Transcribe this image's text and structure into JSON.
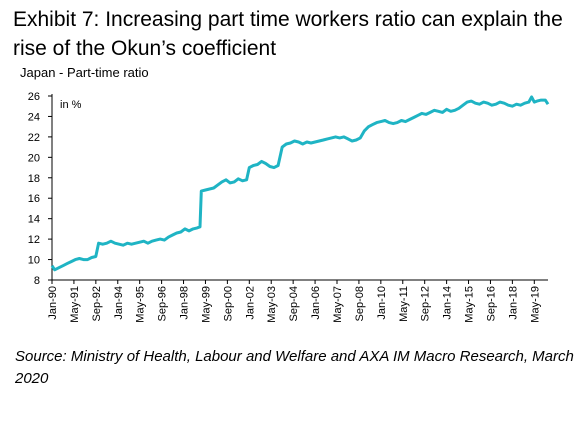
{
  "exhibit_title": "Exhibit 7: Increasing part time workers ratio can explain the rise of the Okun’s coefficient",
  "source": "Source: Ministry of Health, Labour and Welfare and AXA IM Macro Research, March 2020",
  "chart_data": {
    "type": "line",
    "title": "Japan - Part-time ratio",
    "unit_label": "in %",
    "xlabel": "",
    "ylabel": "",
    "ylim": [
      8,
      26
    ],
    "yticks": [
      8,
      10,
      12,
      14,
      16,
      18,
      20,
      22,
      24,
      26
    ],
    "x_range": [
      "1990-01",
      "2020-03"
    ],
    "xticks": [
      "Jan-90",
      "May-91",
      "Sep-92",
      "Jan-94",
      "May-95",
      "Sep-96",
      "Jan-98",
      "May-99",
      "Sep-00",
      "Jan-02",
      "May-03",
      "Sep-04",
      "Jan-06",
      "May-07",
      "Sep-08",
      "Jan-10",
      "May-11",
      "Sep-12",
      "Jan-14",
      "May-15",
      "Sep-16",
      "Jan-18",
      "May-19"
    ],
    "grid": false,
    "legend": "none",
    "line_color": "#1fb4c4",
    "series": [
      {
        "values": [
          [
            "1990-01",
            9.4
          ],
          [
            "1990-03",
            9.0
          ],
          [
            "1990-06",
            9.2
          ],
          [
            "1990-09",
            9.4
          ],
          [
            "1990-12",
            9.6
          ],
          [
            "1991-03",
            9.8
          ],
          [
            "1991-06",
            10.0
          ],
          [
            "1991-09",
            10.1
          ],
          [
            "1991-12",
            10.0
          ],
          [
            "1992-03",
            10.0
          ],
          [
            "1992-06",
            10.2
          ],
          [
            "1992-09",
            10.3
          ],
          [
            "1992-11",
            11.6
          ],
          [
            "1993-02",
            11.5
          ],
          [
            "1993-05",
            11.6
          ],
          [
            "1993-08",
            11.8
          ],
          [
            "1993-11",
            11.6
          ],
          [
            "1994-02",
            11.5
          ],
          [
            "1994-05",
            11.4
          ],
          [
            "1994-08",
            11.6
          ],
          [
            "1994-11",
            11.5
          ],
          [
            "1995-02",
            11.6
          ],
          [
            "1995-05",
            11.7
          ],
          [
            "1995-08",
            11.8
          ],
          [
            "1995-11",
            11.6
          ],
          [
            "1996-02",
            11.8
          ],
          [
            "1996-05",
            11.9
          ],
          [
            "1996-08",
            12.0
          ],
          [
            "1996-11",
            11.9
          ],
          [
            "1997-02",
            12.2
          ],
          [
            "1997-05",
            12.4
          ],
          [
            "1997-08",
            12.6
          ],
          [
            "1997-11",
            12.7
          ],
          [
            "1998-02",
            13.0
          ],
          [
            "1998-05",
            12.8
          ],
          [
            "1998-08",
            13.0
          ],
          [
            "1998-11",
            13.1
          ],
          [
            "1999-01",
            13.2
          ],
          [
            "1999-02",
            16.7
          ],
          [
            "1999-05",
            16.8
          ],
          [
            "1999-08",
            16.9
          ],
          [
            "1999-11",
            17.0
          ],
          [
            "2000-02",
            17.3
          ],
          [
            "2000-05",
            17.6
          ],
          [
            "2000-08",
            17.8
          ],
          [
            "2000-11",
            17.5
          ],
          [
            "2001-02",
            17.6
          ],
          [
            "2001-05",
            17.9
          ],
          [
            "2001-08",
            17.7
          ],
          [
            "2001-11",
            17.8
          ],
          [
            "2002-01",
            19.0
          ],
          [
            "2002-04",
            19.2
          ],
          [
            "2002-07",
            19.3
          ],
          [
            "2002-10",
            19.6
          ],
          [
            "2003-01",
            19.4
          ],
          [
            "2003-04",
            19.1
          ],
          [
            "2003-07",
            19.0
          ],
          [
            "2003-10",
            19.2
          ],
          [
            "2004-01",
            21.0
          ],
          [
            "2004-04",
            21.3
          ],
          [
            "2004-07",
            21.4
          ],
          [
            "2004-10",
            21.6
          ],
          [
            "2005-01",
            21.5
          ],
          [
            "2005-04",
            21.3
          ],
          [
            "2005-07",
            21.5
          ],
          [
            "2005-10",
            21.4
          ],
          [
            "2006-01",
            21.5
          ],
          [
            "2006-04",
            21.6
          ],
          [
            "2006-07",
            21.7
          ],
          [
            "2006-10",
            21.8
          ],
          [
            "2007-01",
            21.9
          ],
          [
            "2007-04",
            22.0
          ],
          [
            "2007-07",
            21.9
          ],
          [
            "2007-10",
            22.0
          ],
          [
            "2008-01",
            21.8
          ],
          [
            "2008-04",
            21.6
          ],
          [
            "2008-07",
            21.7
          ],
          [
            "2008-10",
            21.9
          ],
          [
            "2009-01",
            22.6
          ],
          [
            "2009-04",
            23.0
          ],
          [
            "2009-07",
            23.2
          ],
          [
            "2009-10",
            23.4
          ],
          [
            "2010-01",
            23.5
          ],
          [
            "2010-04",
            23.6
          ],
          [
            "2010-07",
            23.4
          ],
          [
            "2010-10",
            23.3
          ],
          [
            "2011-01",
            23.4
          ],
          [
            "2011-04",
            23.6
          ],
          [
            "2011-07",
            23.5
          ],
          [
            "2011-10",
            23.7
          ],
          [
            "2012-01",
            23.9
          ],
          [
            "2012-04",
            24.1
          ],
          [
            "2012-07",
            24.3
          ],
          [
            "2012-10",
            24.2
          ],
          [
            "2013-01",
            24.4
          ],
          [
            "2013-04",
            24.6
          ],
          [
            "2013-07",
            24.5
          ],
          [
            "2013-10",
            24.4
          ],
          [
            "2014-01",
            24.7
          ],
          [
            "2014-04",
            24.5
          ],
          [
            "2014-07",
            24.6
          ],
          [
            "2014-10",
            24.8
          ],
          [
            "2015-01",
            25.1
          ],
          [
            "2015-04",
            25.4
          ],
          [
            "2015-07",
            25.5
          ],
          [
            "2015-10",
            25.3
          ],
          [
            "2016-01",
            25.2
          ],
          [
            "2016-04",
            25.4
          ],
          [
            "2016-07",
            25.3
          ],
          [
            "2016-10",
            25.1
          ],
          [
            "2017-01",
            25.2
          ],
          [
            "2017-04",
            25.4
          ],
          [
            "2017-07",
            25.3
          ],
          [
            "2017-10",
            25.1
          ],
          [
            "2018-01",
            25.0
          ],
          [
            "2018-04",
            25.2
          ],
          [
            "2018-07",
            25.1
          ],
          [
            "2018-10",
            25.3
          ],
          [
            "2019-01",
            25.4
          ],
          [
            "2019-03",
            25.9
          ],
          [
            "2019-05",
            25.4
          ],
          [
            "2019-07",
            25.5
          ],
          [
            "2019-10",
            25.6
          ],
          [
            "2020-01",
            25.6
          ],
          [
            "2020-03",
            25.2
          ]
        ]
      }
    ]
  }
}
